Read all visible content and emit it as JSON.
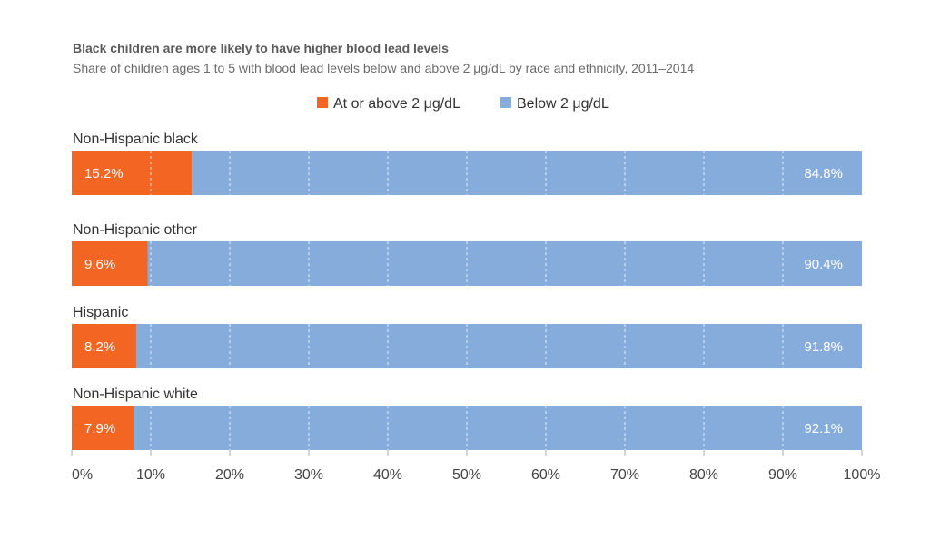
{
  "chart_data": {
    "type": "bar",
    "orientation": "horizontal",
    "stacked": true,
    "title": "Black children are more likely to have higher blood lead levels",
    "subtitle": "Share of children ages 1 to 5 with blood lead levels below and above 2 μg/dL by race and ethnicity, 2011–2014",
    "categories": [
      "Non-Hispanic black",
      "Non-Hispanic other",
      "Hispanic",
      "Non-Hispanic white"
    ],
    "series": [
      {
        "name": "At or above 2 μg/dL",
        "color": "#f26522",
        "values": [
          15.2,
          9.6,
          8.2,
          7.9
        ],
        "labels": [
          "15.2%",
          "9.6%",
          "8.2%",
          "7.9%"
        ]
      },
      {
        "name": "Below 2 μg/dL",
        "color": "#86acdc",
        "values": [
          84.8,
          90.4,
          91.8,
          92.1
        ],
        "labels": [
          "84.8%",
          "90.4%",
          "91.8%",
          "92.1%"
        ]
      }
    ],
    "xlim": [
      0,
      100
    ],
    "xticks": [
      "0%",
      "10%",
      "20%",
      "30%",
      "40%",
      "50%",
      "60%",
      "70%",
      "80%",
      "90%",
      "100%"
    ],
    "grid": true,
    "legend_position": "top-center"
  }
}
